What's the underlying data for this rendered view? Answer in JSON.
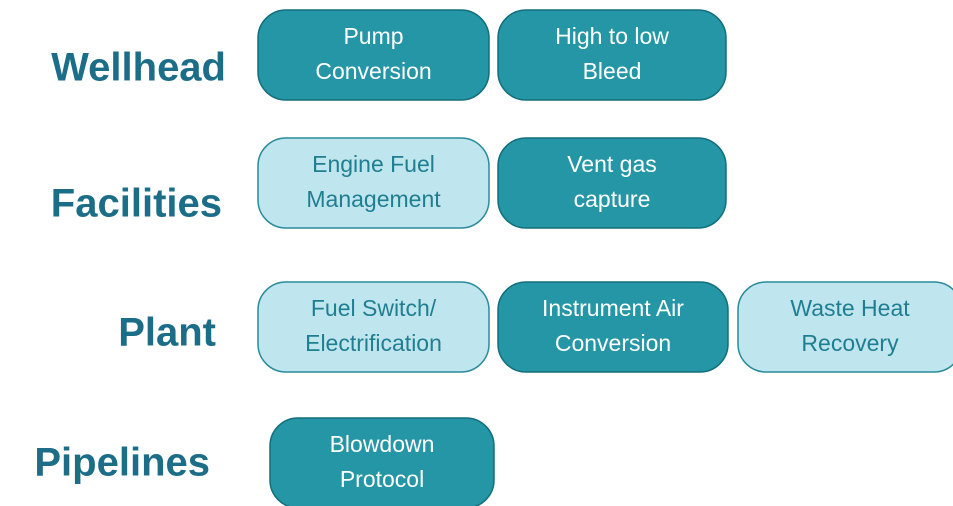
{
  "rows": [
    {
      "label": "Wellhead",
      "items": [
        {
          "lines": [
            "Pump",
            "Conversion"
          ],
          "style": "dark"
        },
        {
          "lines": [
            "High to low",
            "Bleed"
          ],
          "style": "dark"
        }
      ]
    },
    {
      "label": "Facilities",
      "items": [
        {
          "lines": [
            "Engine Fuel",
            "Management"
          ],
          "style": "light"
        },
        {
          "lines": [
            "Vent gas",
            "capture"
          ],
          "style": "dark"
        }
      ]
    },
    {
      "label": "Plant",
      "items": [
        {
          "lines": [
            "Fuel Switch/",
            "Electrification"
          ],
          "style": "light"
        },
        {
          "lines": [
            "Instrument Air",
            "Conversion"
          ],
          "style": "dark"
        },
        {
          "lines": [
            "Waste Heat",
            "Recovery"
          ],
          "style": "light"
        }
      ]
    },
    {
      "label": "Pipelines",
      "items": [
        {
          "lines": [
            "Blowdown",
            "Protocol"
          ],
          "style": "dark"
        }
      ]
    }
  ]
}
